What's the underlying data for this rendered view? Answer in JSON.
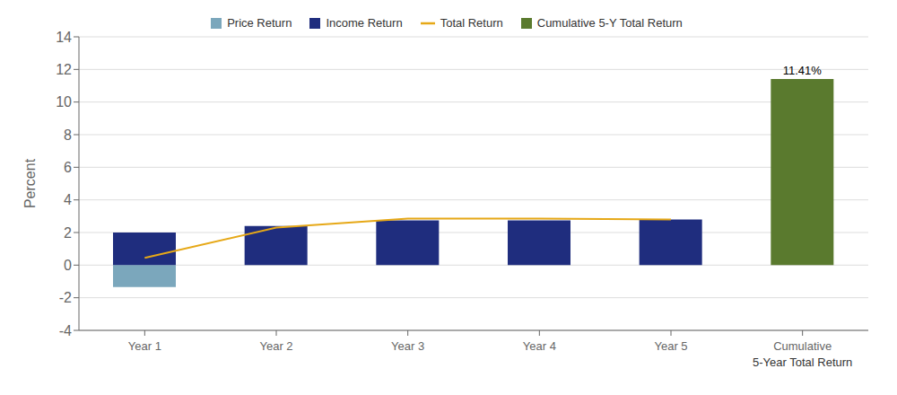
{
  "chart_data": {
    "type": "bar",
    "categories": [
      "Year 1",
      "Year 2",
      "Year 3",
      "Year 4",
      "Year 5",
      "Cumulative"
    ],
    "ylabel": "Percent",
    "ylim": [
      -4,
      14
    ],
    "yticks": [
      -4,
      -2,
      0,
      2,
      4,
      6,
      8,
      10,
      12,
      14
    ],
    "grid": true,
    "legend": "top",
    "series": [
      {
        "name": "Price Return",
        "type": "bar",
        "color": "#7ba7bc",
        "values": [
          -1.35,
          null,
          null,
          null,
          null,
          null
        ]
      },
      {
        "name": "Income Return",
        "type": "bar",
        "color": "#1f2d7e",
        "values": [
          2.0,
          2.4,
          2.75,
          2.75,
          2.8,
          null
        ]
      },
      {
        "name": "Total Return",
        "type": "line",
        "color": "#e6a817",
        "values": [
          0.45,
          2.3,
          2.85,
          2.85,
          2.8,
          null
        ]
      },
      {
        "name": "Cumulative 5-Y Total Return",
        "type": "bar",
        "color": "#5a7a2e",
        "values": [
          null,
          null,
          null,
          null,
          null,
          11.41
        ],
        "data_labels": true,
        "value_labels": [
          null,
          null,
          null,
          null,
          null,
          "11.41%"
        ]
      }
    ],
    "annotations": [
      {
        "text": "5-Year Total Return",
        "x": "Cumulative"
      }
    ]
  }
}
